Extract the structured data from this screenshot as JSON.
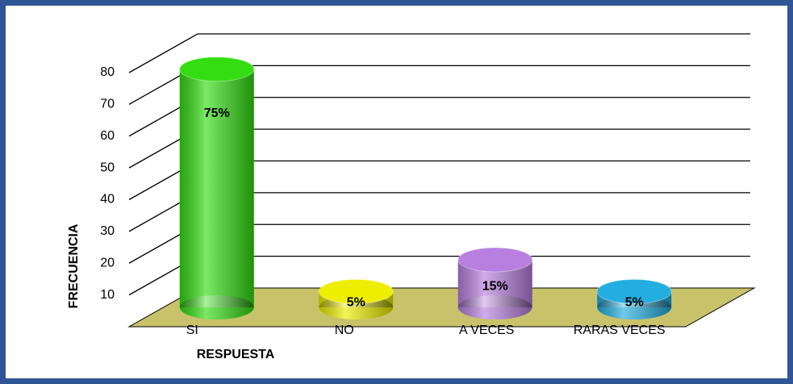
{
  "chart_data": {
    "type": "bar",
    "x_label": "RESPUESTA",
    "y_label": "FRECUENCIA",
    "categories": [
      "SI",
      "NO",
      "A VECES",
      "RARAS VECES"
    ],
    "values": [
      75,
      5,
      15,
      5
    ],
    "value_labels": [
      "75%",
      "5%",
      "15%",
      "5%"
    ],
    "colors": [
      "#33dd11",
      "#eeee00",
      "#b97fe0",
      "#22aee0"
    ],
    "ylim": [
      0,
      80
    ],
    "yticks": [
      10,
      20,
      30,
      40,
      50,
      60,
      70,
      80
    ],
    "grid": true
  }
}
